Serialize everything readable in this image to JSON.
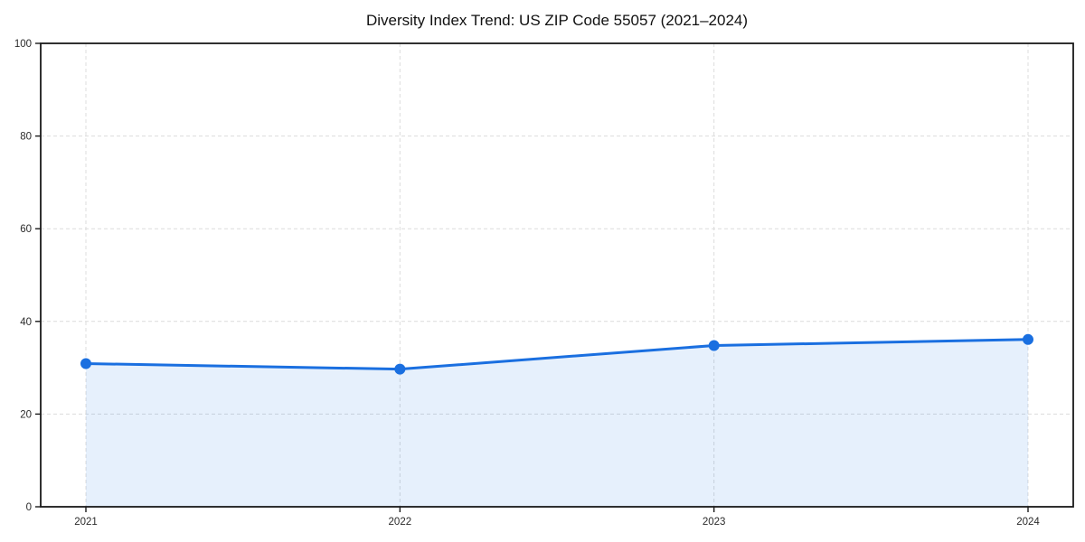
{
  "chart_data": {
    "type": "line",
    "title": "Diversity Index Trend: US ZIP Code 55057 (2021–2024)",
    "categories": [
      "2021",
      "2022",
      "2023",
      "2024"
    ],
    "values": [
      30.9,
      29.7,
      34.8,
      36.1
    ],
    "xlabel": "",
    "ylabel": "",
    "ylim": [
      0,
      100
    ],
    "yticks": [
      0,
      20,
      40,
      60,
      80,
      100
    ],
    "grid": "dashed-both-axes",
    "legend": "none",
    "marker": "circle",
    "area_fill": true,
    "colors": {
      "line": "#1a6fe0",
      "marker": "#1a6fe0",
      "fill": "#1a73e8",
      "fill_opacity": 0.11,
      "grid": "#dcdcdc",
      "axis": "#1a1a1a",
      "tick_label": "#2b2b2b",
      "title": "#111111",
      "background": "#ffffff"
    }
  }
}
